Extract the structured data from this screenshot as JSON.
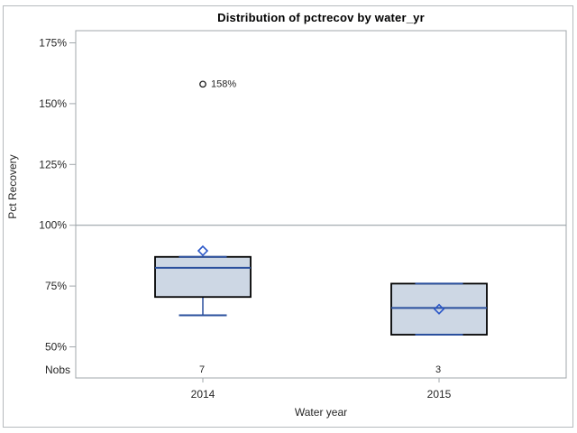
{
  "chart": {
    "title": "Distribution of pctrecov by water_yr",
    "y_axis_title": "Pct Recovery",
    "x_axis_title": "Water year",
    "nobs_row_label": "Nobs"
  },
  "chart_data": {
    "type": "boxplot",
    "title": "Distribution of pctrecov by water_yr",
    "xlabel": "Water year",
    "ylabel": "Pct Recovery",
    "ylim": [
      37,
      180
    ],
    "yticks": [
      50,
      75,
      100,
      125,
      150,
      175
    ],
    "ytick_labels": [
      "50%",
      "75%",
      "100%",
      "125%",
      "150%",
      "175%"
    ],
    "refline": 100,
    "grid": "off",
    "categories": [
      "2014",
      "2015"
    ],
    "nobs_values": [
      "7",
      "3"
    ],
    "series": [
      {
        "category": "2014",
        "nobs": 7,
        "whisker_low": 63,
        "q1": 70.5,
        "median": 82.5,
        "q3": 87,
        "whisker_high": 87,
        "mean": 89.5,
        "outliers": [
          {
            "value": 158,
            "label": "158%"
          }
        ]
      },
      {
        "category": "2015",
        "nobs": 3,
        "whisker_low": 55,
        "q1": 55,
        "median": 66,
        "q3": 76,
        "whisker_high": 76,
        "mean": 65.5,
        "outliers": []
      }
    ]
  },
  "colors": {
    "box_fill": "#cdd7e4",
    "box_stroke": "#000000",
    "line_blue": "#2a4f9d",
    "diamond_stroke": "#2b57c8",
    "outlier_stroke": "#1a1a1a",
    "refline": "#9aa2a8",
    "frame": "#a1a7ab",
    "tick_text": "#262626",
    "outlier_text": "#1a1a1a"
  }
}
